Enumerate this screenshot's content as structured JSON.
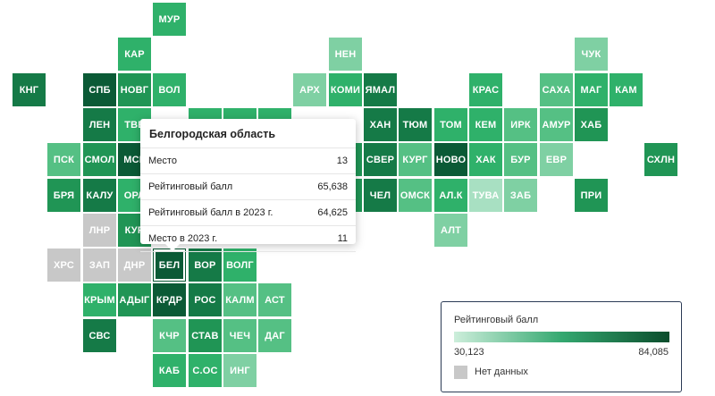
{
  "colors": {
    "c1": "#0b5a36",
    "c2": "#157a47",
    "c3": "#209555",
    "c4": "#2fb16a",
    "c5": "#55c084",
    "c6": "#7fd0a3",
    "c7": "#a8e0c2",
    "nodata": "#c8c8c8"
  },
  "tiles": [
    {
      "code": "МУР",
      "col": 4,
      "row": 0,
      "shade": "c4"
    },
    {
      "code": "КАР",
      "col": 3,
      "row": 1,
      "shade": "c4"
    },
    {
      "code": "НЕН",
      "col": 9,
      "row": 1,
      "shade": "c6"
    },
    {
      "code": "ЧУК",
      "col": 16,
      "row": 1,
      "shade": "c6"
    },
    {
      "code": "КНГ",
      "col": 0,
      "row": 2,
      "shade": "c2"
    },
    {
      "code": "СПБ",
      "col": 2,
      "row": 2,
      "shade": "c1"
    },
    {
      "code": "НОВГ",
      "col": 3,
      "row": 2,
      "shade": "c3"
    },
    {
      "code": "ВОЛ",
      "col": 4,
      "row": 2,
      "shade": "c4"
    },
    {
      "code": "АРХ",
      "col": 8,
      "row": 2,
      "shade": "c6"
    },
    {
      "code": "КОМИ",
      "col": 9,
      "row": 2,
      "shade": "c4"
    },
    {
      "code": "ЯМАЛ",
      "col": 10,
      "row": 2,
      "shade": "c2"
    },
    {
      "code": "КРАС",
      "col": 13,
      "row": 2,
      "shade": "c4"
    },
    {
      "code": "САХА",
      "col": 15,
      "row": 2,
      "shade": "c5"
    },
    {
      "code": "МАГ",
      "col": 16,
      "row": 2,
      "shade": "c4"
    },
    {
      "code": "КАМ",
      "col": 17,
      "row": 2,
      "shade": "c4"
    },
    {
      "code": "ЛЕН",
      "col": 2,
      "row": 3,
      "shade": "c2"
    },
    {
      "code": "ТВЕ",
      "col": 3,
      "row": 3,
      "shade": "c4"
    },
    {
      "code": "",
      "col": 5,
      "row": 3,
      "shade": "c4"
    },
    {
      "code": "",
      "col": 6,
      "row": 3,
      "shade": "c4"
    },
    {
      "code": "",
      "col": 7,
      "row": 3,
      "shade": "c4"
    },
    {
      "code": "ХАН",
      "col": 10,
      "row": 3,
      "shade": "c2"
    },
    {
      "code": "ТЮМ",
      "col": 11,
      "row": 3,
      "shade": "c2"
    },
    {
      "code": "ТОМ",
      "col": 12,
      "row": 3,
      "shade": "c4"
    },
    {
      "code": "КЕМ",
      "col": 13,
      "row": 3,
      "shade": "c4"
    },
    {
      "code": "ИРК",
      "col": 14,
      "row": 3,
      "shade": "c5"
    },
    {
      "code": "АМУР",
      "col": 15,
      "row": 3,
      "shade": "c5"
    },
    {
      "code": "ХАБ",
      "col": 16,
      "row": 3,
      "shade": "c3"
    },
    {
      "code": "ПСК",
      "col": 1,
      "row": 4,
      "shade": "c5"
    },
    {
      "code": "СМОЛ",
      "col": 2,
      "row": 4,
      "shade": "c3"
    },
    {
      "code": "МСК",
      "col": 3,
      "row": 4,
      "shade": "c1"
    },
    {
      "code": "",
      "col": 9,
      "row": 4,
      "shade": "c3"
    },
    {
      "code": "СВЕР",
      "col": 10,
      "row": 4,
      "shade": "c2"
    },
    {
      "code": "КУРГ",
      "col": 11,
      "row": 4,
      "shade": "c5"
    },
    {
      "code": "НОВО",
      "col": 12,
      "row": 4,
      "shade": "c1"
    },
    {
      "code": "ХАК",
      "col": 13,
      "row": 4,
      "shade": "c4"
    },
    {
      "code": "БУР",
      "col": 14,
      "row": 4,
      "shade": "c5"
    },
    {
      "code": "ЕВР",
      "col": 15,
      "row": 4,
      "shade": "c6"
    },
    {
      "code": "СХЛН",
      "col": 18,
      "row": 4,
      "shade": "c3"
    },
    {
      "code": "БРЯ",
      "col": 1,
      "row": 5,
      "shade": "c3"
    },
    {
      "code": "КАЛУ",
      "col": 2,
      "row": 5,
      "shade": "c2"
    },
    {
      "code": "ОРЛ",
      "col": 3,
      "row": 5,
      "shade": "c4"
    },
    {
      "code": "",
      "col": 9,
      "row": 5,
      "shade": "c3"
    },
    {
      "code": "ЧЕЛ",
      "col": 10,
      "row": 5,
      "shade": "c2"
    },
    {
      "code": "ОМСК",
      "col": 11,
      "row": 5,
      "shade": "c5"
    },
    {
      "code": "АЛ.К",
      "col": 12,
      "row": 5,
      "shade": "c4"
    },
    {
      "code": "ТУВА",
      "col": 13,
      "row": 5,
      "shade": "c7"
    },
    {
      "code": "ЗАБ",
      "col": 14,
      "row": 5,
      "shade": "c6"
    },
    {
      "code": "ПРИ",
      "col": 16,
      "row": 5,
      "shade": "c3"
    },
    {
      "code": "ЛНР",
      "col": 2,
      "row": 6,
      "shade": "nodata"
    },
    {
      "code": "КУР",
      "col": 3,
      "row": 6,
      "shade": "c3"
    },
    {
      "code": "АЛТ",
      "col": 12,
      "row": 6,
      "shade": "c6"
    },
    {
      "code": "ХРС",
      "col": 1,
      "row": 7,
      "shade": "nodata"
    },
    {
      "code": "ЗАП",
      "col": 2,
      "row": 7,
      "shade": "nodata"
    },
    {
      "code": "ДНР",
      "col": 3,
      "row": 7,
      "shade": "nodata"
    },
    {
      "code": "БЕЛ",
      "col": 4,
      "row": 7,
      "shade": "c1",
      "selected": true
    },
    {
      "code": "ВОР",
      "col": 5,
      "row": 7,
      "shade": "c2"
    },
    {
      "code": "ВОЛГ",
      "col": 6,
      "row": 7,
      "shade": "c4"
    },
    {
      "code": "КРЫМ",
      "col": 2,
      "row": 8,
      "shade": "c4"
    },
    {
      "code": "АДЫГ",
      "col": 3,
      "row": 8,
      "shade": "c3"
    },
    {
      "code": "КРДР",
      "col": 4,
      "row": 8,
      "shade": "c1"
    },
    {
      "code": "РОС",
      "col": 5,
      "row": 8,
      "shade": "c2"
    },
    {
      "code": "КАЛМ",
      "col": 6,
      "row": 8,
      "shade": "c5"
    },
    {
      "code": "АСТ",
      "col": 7,
      "row": 8,
      "shade": "c5"
    },
    {
      "code": "СВС",
      "col": 2,
      "row": 9,
      "shade": "c2"
    },
    {
      "code": "КЧР",
      "col": 4,
      "row": 9,
      "shade": "c5"
    },
    {
      "code": "СТАВ",
      "col": 5,
      "row": 9,
      "shade": "c3"
    },
    {
      "code": "ЧЕЧ",
      "col": 6,
      "row": 9,
      "shade": "c5"
    },
    {
      "code": "ДАГ",
      "col": 7,
      "row": 9,
      "shade": "c5"
    },
    {
      "code": "КАБ",
      "col": 4,
      "row": 10,
      "shade": "c4"
    },
    {
      "code": "С.ОС",
      "col": 5,
      "row": 10,
      "shade": "c4"
    },
    {
      "code": "ИНГ",
      "col": 6,
      "row": 10,
      "shade": "c6"
    }
  ],
  "tooltip": {
    "title": "Белгородская область",
    "rows": [
      {
        "label": "Место",
        "value": "13"
      },
      {
        "label": "Рейтинговый балл",
        "value": "65,638"
      },
      {
        "label": "Рейтинговый балл в 2023 г.",
        "value": "64,625"
      },
      {
        "label": "Место в 2023 г.",
        "value": "11"
      }
    ]
  },
  "legend": {
    "title": "Рейтинговый балл",
    "min": "30,123",
    "max": "84,085",
    "nodata_label": "Нет данных"
  }
}
